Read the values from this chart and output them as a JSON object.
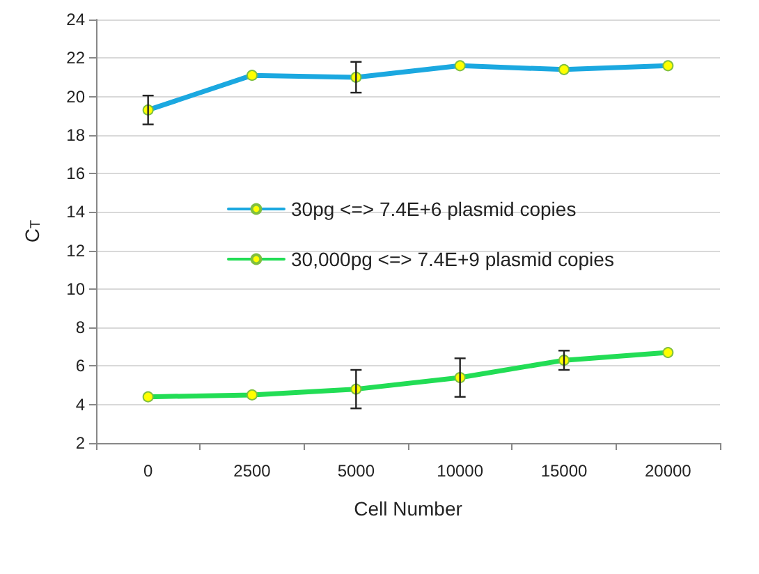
{
  "chart_data": {
    "type": "line",
    "xlabel": "Cell Number",
    "ylabel": "C$_{T}$",
    "categories": [
      "0",
      "2500",
      "5000",
      "10000",
      "15000",
      "20000"
    ],
    "series": [
      {
        "name": "30pg <=> 7.4E+6 plasmid copies",
        "color": "#1ba8e0",
        "values": [
          19.3,
          21.1,
          21.0,
          21.6,
          21.4,
          21.6
        ],
        "errors": [
          0.75,
          null,
          0.8,
          null,
          null,
          null
        ]
      },
      {
        "name": "30,000pg <=> 7.4E+9 plasmid copies",
        "color": "#22dd55",
        "values": [
          4.4,
          4.5,
          4.8,
          5.4,
          6.3,
          6.7
        ],
        "errors": [
          null,
          null,
          1.0,
          1.0,
          0.5,
          null
        ]
      }
    ],
    "ylim": [
      2,
      24
    ],
    "yticks": [
      2,
      4,
      6,
      8,
      10,
      12,
      14,
      16,
      18,
      20,
      22,
      24
    ],
    "grid": "y",
    "legend": "left",
    "marker": "circle",
    "line_style": "solid"
  }
}
